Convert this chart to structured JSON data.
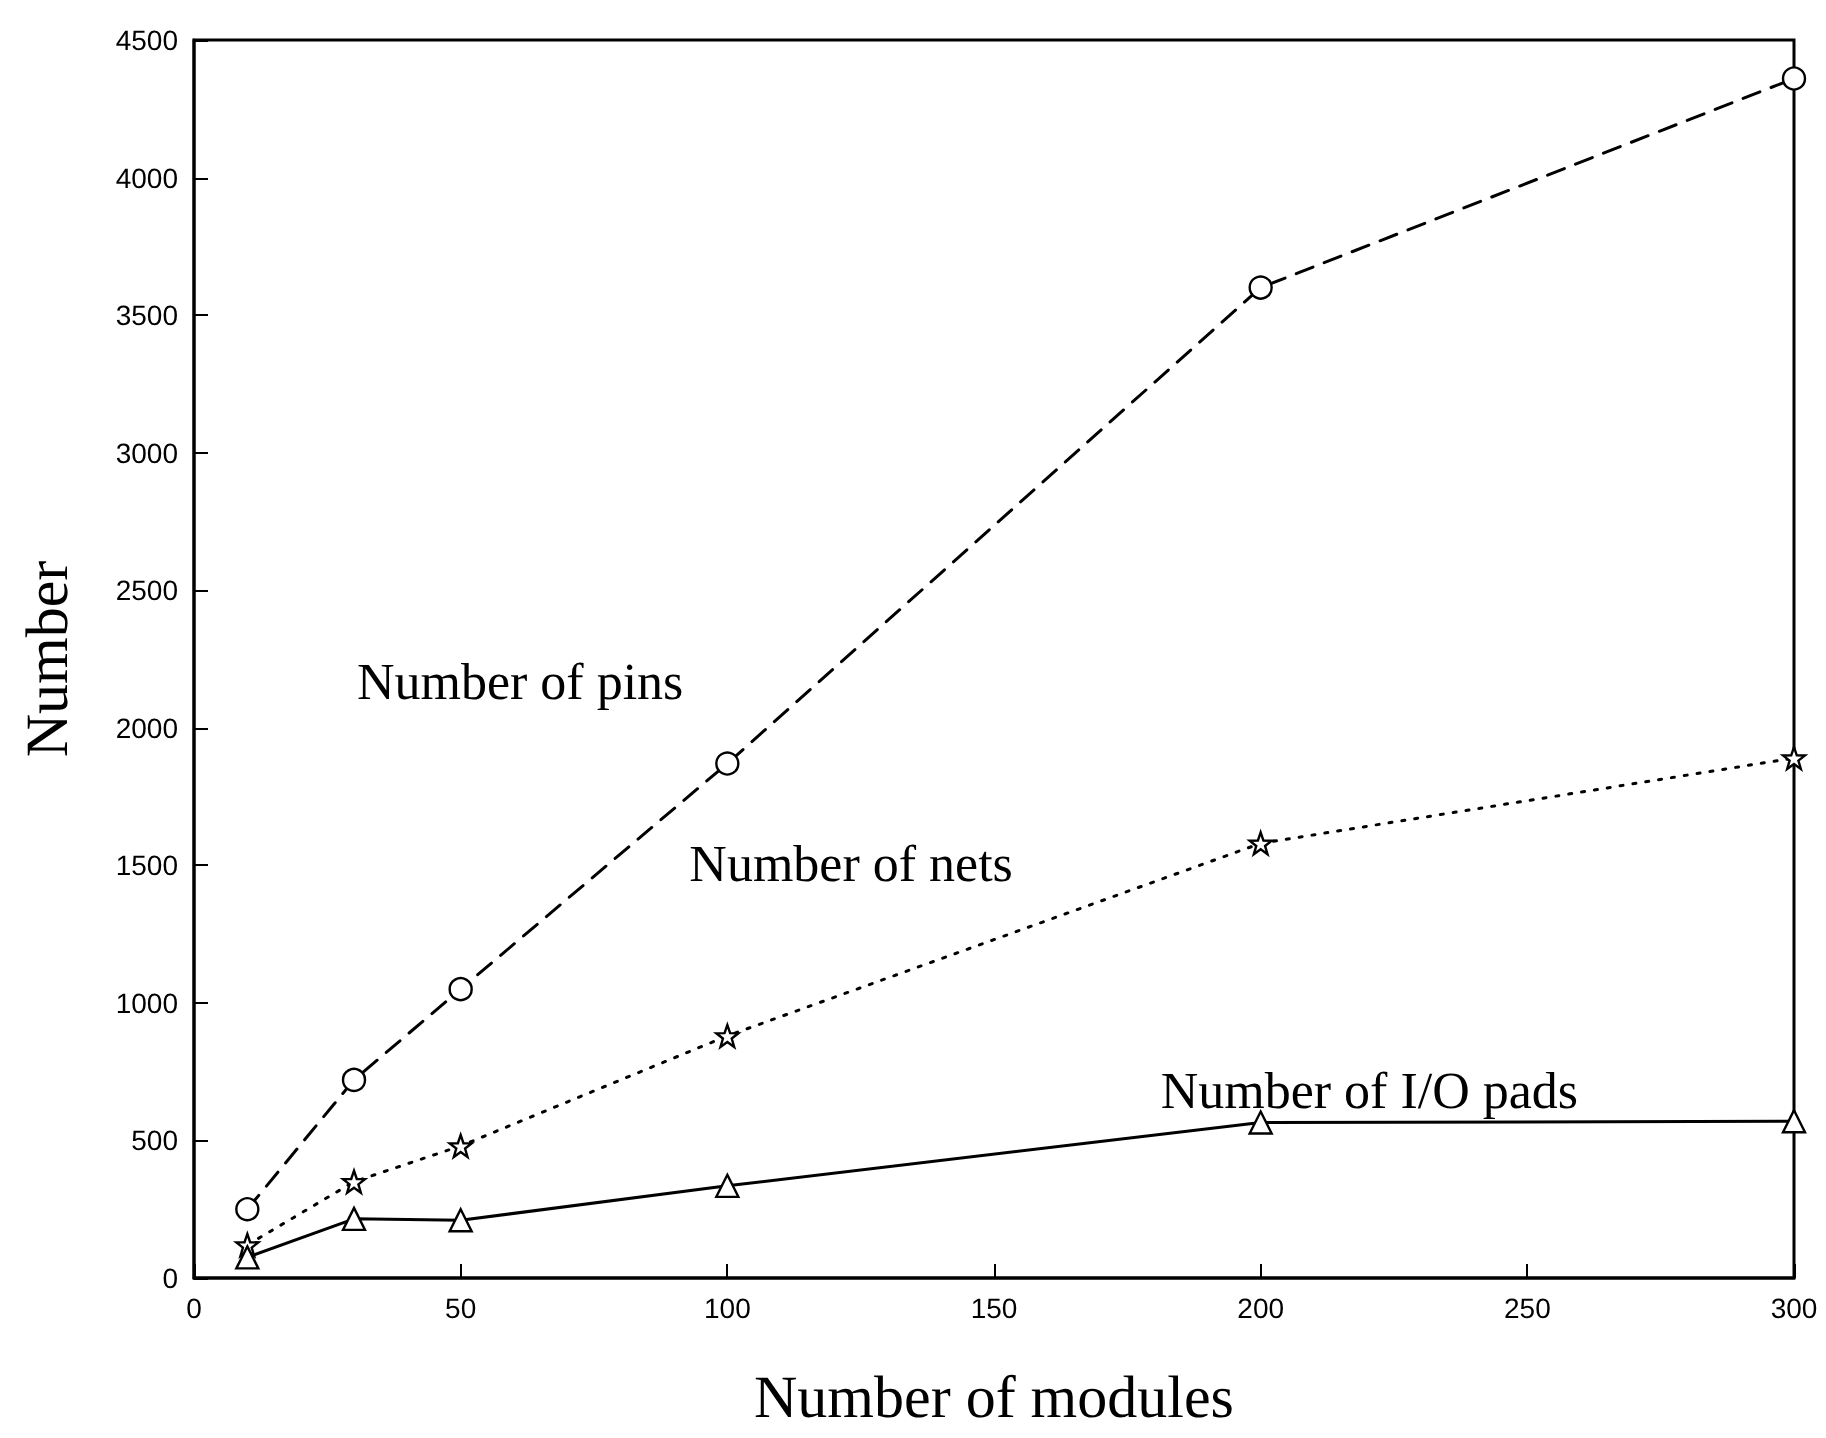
{
  "chart_data": {
    "type": "line",
    "xlabel": "Number of modules",
    "ylabel": "Number",
    "x": [
      10,
      30,
      50,
      100,
      200,
      300
    ],
    "series": [
      {
        "name": "Number of pins",
        "color": "#000000",
        "marker": "circle",
        "line_style": "dashed",
        "values": [
          250,
          720,
          1050,
          1870,
          3600,
          4360
        ]
      },
      {
        "name": "Number of nets",
        "color": "#000000",
        "marker": "star",
        "line_style": "dotted",
        "values": [
          120,
          350,
          480,
          880,
          1580,
          1890
        ]
      },
      {
        "name": "Number of I/O pads",
        "color": "#000000",
        "marker": "triangle",
        "line_style": "solid",
        "values": [
          75,
          215,
          210,
          335,
          565,
          570
        ]
      }
    ],
    "xlim": [
      0,
      300
    ],
    "xticks": [
      0,
      50,
      100,
      150,
      200,
      250,
      300
    ],
    "ylim": [
      0,
      4500
    ],
    "yticks": [
      0,
      500,
      1000,
      1500,
      2000,
      2500,
      3000,
      3500,
      4000,
      4500
    ],
    "grid": false,
    "legend": false
  }
}
